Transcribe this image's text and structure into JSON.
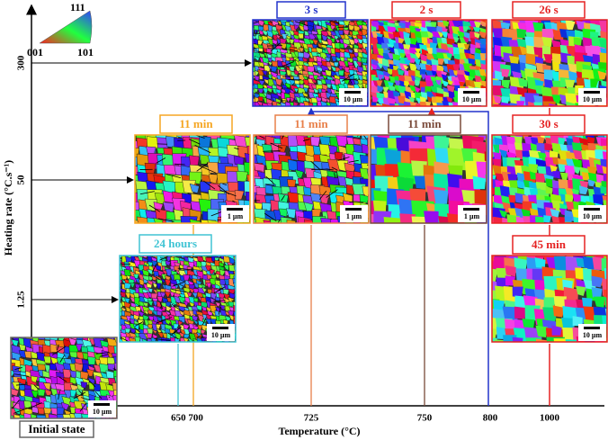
{
  "legend": {
    "top": "111",
    "left": "001",
    "right": "101"
  },
  "y_axis": {
    "title": "Heating rate (°C.s⁻¹)",
    "labels": [
      "300",
      "50",
      "1.25"
    ]
  },
  "x_axis": {
    "title": "Temperature (°C)",
    "labels": [
      "650 700",
      "725",
      "750",
      "800",
      "1000"
    ]
  },
  "panels": [
    {
      "label": "Initial state",
      "scale": "10 µm"
    },
    {
      "label": "24 hours",
      "scale": "10 µm"
    },
    {
      "label": "11 min",
      "scale": "1 µm"
    },
    {
      "label": "11 min",
      "scale": "1 µm"
    },
    {
      "label": "11 min",
      "scale": "1 µm"
    },
    {
      "label": "30 s",
      "scale": "10 µm"
    },
    {
      "label": "45 min",
      "scale": "10 µm"
    },
    {
      "label": "3 s",
      "scale": "10 µm"
    },
    {
      "label": "2 s",
      "scale": "10 µm"
    },
    {
      "label": "26 s",
      "scale": "10 µm"
    }
  ]
}
